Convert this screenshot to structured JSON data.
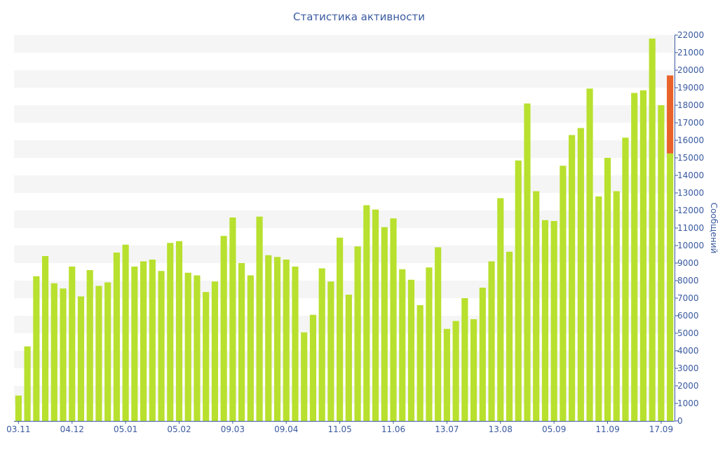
{
  "chart_data": {
    "type": "bar",
    "title": "Статистика активности",
    "xlabel": "",
    "ylabel": "Сообщений",
    "ylim": [
      0,
      22000
    ],
    "y_ticks": [
      0,
      1000,
      2000,
      3000,
      4000,
      5000,
      6000,
      7000,
      8000,
      9000,
      10000,
      11000,
      12000,
      13000,
      14000,
      15000,
      16000,
      17000,
      18000,
      19000,
      20000,
      21000,
      22000
    ],
    "x_tick_labels": [
      {
        "label": "03.11",
        "index": 0
      },
      {
        "label": "04.12",
        "index": 6
      },
      {
        "label": "05.01",
        "index": 12
      },
      {
        "label": "05.02",
        "index": 18
      },
      {
        "label": "09.03",
        "index": 24
      },
      {
        "label": "09.04",
        "index": 30
      },
      {
        "label": "11.05",
        "index": 36
      },
      {
        "label": "11.06",
        "index": 42
      },
      {
        "label": "13.07",
        "index": 48
      },
      {
        "label": "13.08",
        "index": 54
      },
      {
        "label": "05.09",
        "index": 60
      },
      {
        "label": "11.09",
        "index": 66
      },
      {
        "label": "17.09",
        "index": 72
      }
    ],
    "grid": "horizontal bands",
    "y_axis_position": "right",
    "colors": {
      "bar": "#b8e02e",
      "highlight": "#e8622a",
      "text": "#3a5aa0",
      "band": "#f5f5f5"
    },
    "values": [
      1450,
      4250,
      8250,
      9400,
      7850,
      7550,
      8800,
      7100,
      8600,
      7700,
      7900,
      9600,
      10050,
      8800,
      9100,
      9200,
      8550,
      10150,
      10250,
      8450,
      8300,
      7350,
      7950,
      10550,
      11600,
      9000,
      8300,
      11650,
      9450,
      9350,
      9200,
      8800,
      5050,
      6050,
      8700,
      7950,
      10450,
      7200,
      9950,
      12300,
      12050,
      11050,
      11550,
      8650,
      8050,
      6600,
      8750,
      9900,
      5250,
      5700,
      7000,
      5800,
      7600,
      9100,
      12700,
      9650,
      14850,
      18100,
      13100,
      11450,
      11400,
      14550,
      16300,
      16700,
      18950,
      12800,
      15000,
      13100,
      16150,
      18700,
      18850,
      21800,
      18000,
      15250
    ],
    "last_bar_extra": 4450
  }
}
